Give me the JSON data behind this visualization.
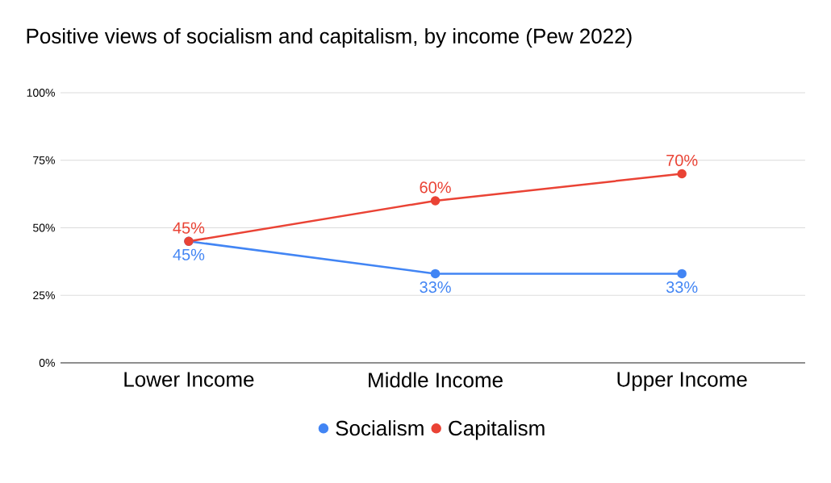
{
  "chart_data": {
    "type": "line",
    "title": "Positive views of socialism and capitalism, by income (Pew 2022)",
    "categories": [
      "Lower Income",
      "Middle Income",
      "Upper Income"
    ],
    "series": [
      {
        "name": "Socialism",
        "color": "#4285f4",
        "values": [
          45,
          33,
          33
        ],
        "value_labels": [
          "45%",
          "33%",
          "33%"
        ]
      },
      {
        "name": "Capitalism",
        "color": "#ea4335",
        "values": [
          45,
          60,
          70
        ],
        "value_labels": [
          "45%",
          "60%",
          "70%"
        ]
      }
    ],
    "ylim": [
      0,
      100
    ],
    "yticks": [
      {
        "value": 0,
        "label": "0%"
      },
      {
        "value": 25,
        "label": "25%"
      },
      {
        "value": 50,
        "label": "50%"
      },
      {
        "value": 75,
        "label": "75%"
      },
      {
        "value": 100,
        "label": "100%"
      }
    ],
    "grid": "y",
    "legend": "bottom",
    "marker": "circle",
    "line_style": "solid"
  }
}
